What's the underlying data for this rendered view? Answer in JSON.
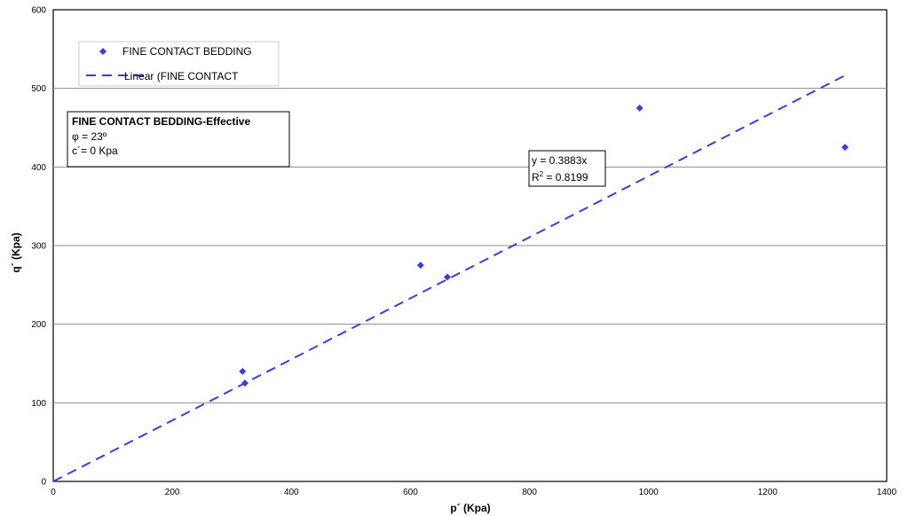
{
  "chart_data": {
    "type": "scatter",
    "xlabel": "p´ (Kpa)",
    "ylabel": "q´ (Kpa)",
    "xlim": [
      0,
      1400
    ],
    "ylim": [
      0,
      600
    ],
    "x_ticks": [
      "0",
      "200",
      "400",
      "600",
      "800",
      "1000",
      "1200",
      "1400"
    ],
    "y_ticks": [
      "0",
      "100",
      "200",
      "300",
      "400",
      "500",
      "600"
    ],
    "grid": "horizontal",
    "legend_position": "top-left",
    "legend": [
      "FINE CONTACT BEDDING",
      "Linear (FINE CONTACT"
    ],
    "series": [
      {
        "name": "FINE CONTACT BEDDING",
        "color": "#3b3bf0",
        "marker": "diamond",
        "points": [
          [
            318,
            140
          ],
          [
            322,
            125
          ],
          [
            617,
            275
          ],
          [
            662,
            260
          ],
          [
            985,
            475
          ],
          [
            1330,
            425
          ]
        ]
      },
      {
        "name": "Linear (FINE CONTACT",
        "color": "#3b3bf0",
        "line_style": "dashed",
        "slope": 0.3883,
        "intercept": 0,
        "x_range": [
          0,
          1335
        ]
      }
    ],
    "trendline_label": {
      "equation": "y = 0.3883x",
      "r2_prefix": "R",
      "r2_sup": "2",
      "r2_value": " = 0.8199"
    },
    "annotation": {
      "title": "FINE CONTACT BEDDING-Effective",
      "line1": "φ = 23º",
      "line2": "c´= 0 Kpa"
    }
  }
}
